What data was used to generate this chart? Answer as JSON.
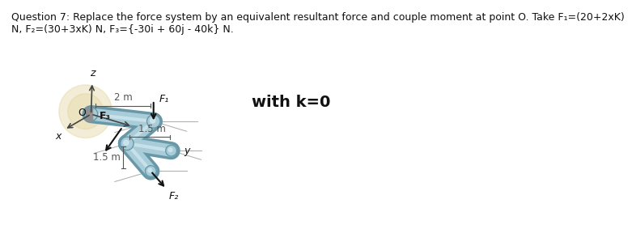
{
  "title_text": "Question 7: Replace the force system by an equivalent resultant force and couple moment at point O. Take F₁=(20+2xK)\nN, F₂=(30+3xK) N, F₃={-30i + 60j - 40k} N.",
  "with_k_text": "with k=0",
  "label_2m": "2 m",
  "label_15m_horiz": "1.5 m",
  "label_15m_lower": "1.5 m",
  "label_F1": "F₁",
  "label_F2": "F₂",
  "label_F3": "F₃",
  "label_x": "x",
  "label_y": "y",
  "label_z": "z",
  "label_O": "O",
  "bg_color": "#ffffff",
  "pipe_color": "#a8ccd8",
  "pipe_dark": "#6898a8",
  "pipe_light": "#d5eaf2",
  "joint_color": "#90bece",
  "glow_color": "#d4c070",
  "arrow_color": "#111111",
  "axis_color": "#444444",
  "text_color": "#111111",
  "dim_color": "#555555",
  "title_fontsize": 9.0,
  "label_fontsize": 9.5,
  "with_k_fontsize": 14
}
